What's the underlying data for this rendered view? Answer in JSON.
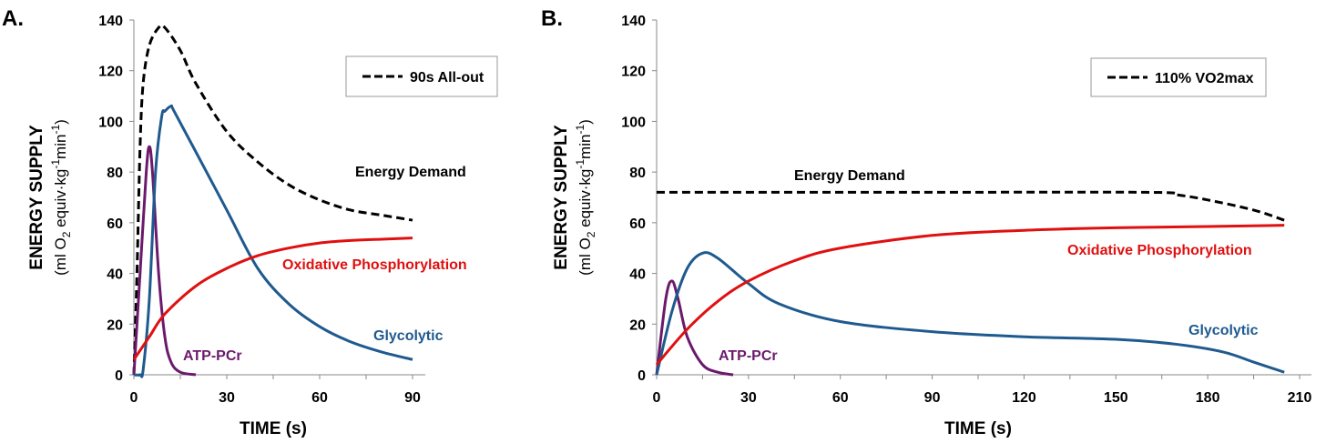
{
  "colors": {
    "demand": "#000000",
    "pcr": "#6b1a6b",
    "glycolytic": "#1f5a8f",
    "oxidative": "#e01010"
  },
  "chart_data": [
    {
      "type": "line",
      "panel": "A.",
      "xlabel": "TIME (s)",
      "ylabel": "ENERGY SUPPLY",
      "ylabel_units": "(ml O2 equiv·kg-1min-1)",
      "xlim": [
        0,
        90
      ],
      "ylim": [
        0,
        140
      ],
      "xticks": [
        0,
        30,
        60,
        90
      ],
      "yticks": [
        0,
        20,
        40,
        60,
        80,
        100,
        120,
        140
      ],
      "legend": {
        "label": "90s All-out",
        "position": "top-right"
      },
      "series": [
        {
          "key": "demand",
          "name": "Energy Demand",
          "dashed": true,
          "x": [
            0,
            1,
            2,
            3,
            5,
            8,
            10,
            15,
            20,
            30,
            40,
            50,
            60,
            70,
            80,
            90
          ],
          "y": [
            0,
            40,
            90,
            115,
            130,
            137,
            137,
            128,
            115,
            96,
            84,
            75,
            69,
            65,
            63,
            61
          ]
        },
        {
          "key": "pcr",
          "name": "ATP-PCr",
          "x": [
            0,
            2,
            4,
            5,
            6,
            8,
            10,
            12,
            15,
            20
          ],
          "y": [
            0,
            40,
            80,
            90,
            80,
            40,
            15,
            5,
            1,
            0
          ]
        },
        {
          "key": "glycolytic",
          "name": "Glycolytic",
          "x": [
            0,
            2,
            3,
            5,
            7,
            9,
            10,
            12,
            13,
            20,
            30,
            40,
            50,
            60,
            70,
            80,
            90
          ],
          "y": [
            0,
            0,
            2,
            30,
            80,
            102,
            104,
            106,
            104,
            88,
            65,
            42,
            28,
            19,
            13,
            9,
            6
          ]
        },
        {
          "key": "oxidative",
          "name": "Oxidative Phosphorylation",
          "x": [
            0,
            5,
            10,
            20,
            30,
            40,
            50,
            60,
            70,
            80,
            90
          ],
          "y": [
            6,
            15,
            24,
            35,
            42,
            47,
            50,
            52,
            53,
            53.5,
            54
          ]
        }
      ]
    },
    {
      "type": "line",
      "panel": "B.",
      "xlabel": "TIME (s)",
      "ylabel": "ENERGY SUPPLY",
      "ylabel_units": "(ml O2 equiv·kg-1min-1)",
      "xlim": [
        0,
        210
      ],
      "ylim": [
        0,
        140
      ],
      "xticks": [
        0,
        30,
        60,
        90,
        120,
        150,
        180,
        210
      ],
      "yticks": [
        0,
        20,
        40,
        60,
        80,
        100,
        120,
        140
      ],
      "legend": {
        "label": "110% VO2max",
        "position": "top-right"
      },
      "series": [
        {
          "key": "demand",
          "name": "Energy Demand",
          "dashed": true,
          "x": [
            0,
            80,
            160,
            170,
            180,
            195,
            205
          ],
          "y": [
            72,
            72,
            72,
            71,
            69,
            65,
            61
          ]
        },
        {
          "key": "pcr",
          "name": "ATP-PCr",
          "x": [
            0,
            3,
            5,
            7,
            10,
            15,
            20,
            25
          ],
          "y": [
            0,
            30,
            37,
            30,
            15,
            4,
            1,
            0
          ]
        },
        {
          "key": "glycolytic",
          "name": "Glycolytic",
          "x": [
            0,
            5,
            10,
            15,
            20,
            30,
            40,
            60,
            90,
            120,
            150,
            170,
            185,
            195,
            205
          ],
          "y": [
            0,
            25,
            42,
            48,
            46,
            36,
            28,
            21,
            17,
            15,
            14,
            12,
            9,
            5,
            1
          ]
        },
        {
          "key": "oxidative",
          "name": "Oxidative Phosphorylation",
          "x": [
            0,
            10,
            20,
            30,
            45,
            60,
            90,
            120,
            150,
            180,
            205
          ],
          "y": [
            4,
            18,
            29,
            37,
            45,
            50,
            55,
            57,
            58,
            58.5,
            59
          ]
        }
      ]
    }
  ]
}
